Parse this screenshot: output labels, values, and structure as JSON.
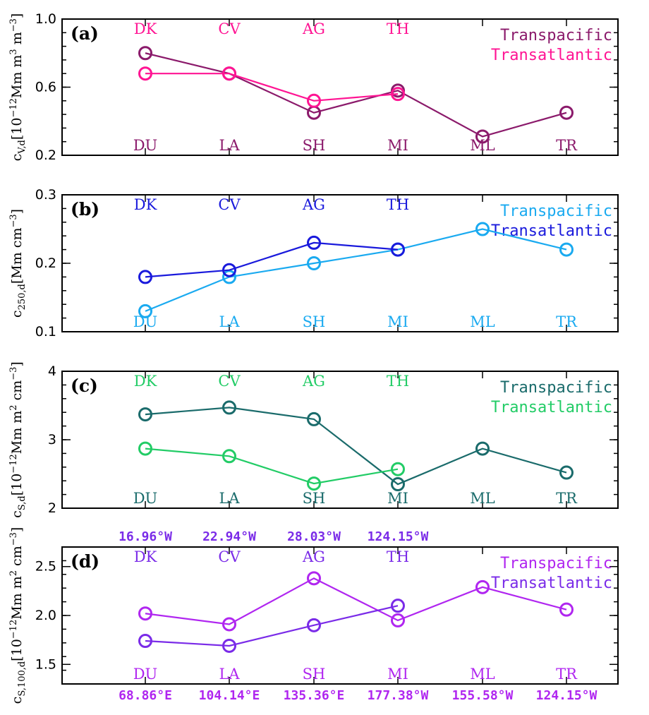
{
  "chart_data": [
    {
      "type": "line",
      "panel": "(a)",
      "ylabel": {
        "main": "c",
        "sub": "V,d",
        "rest": "[10",
        "sup1": "−12",
        "rest2": "Mm m",
        "sup2": "3",
        "rest3": " m",
        "sup3": "−3",
        "close": "]"
      },
      "ylim": [
        0.2,
        1.0
      ],
      "yticks": [
        0.2,
        0.6,
        1.0
      ],
      "ytick_labels": [
        "0.2",
        "0.6",
        "1.0"
      ],
      "top_sites": [
        "DK",
        "CV",
        "AG",
        "TH"
      ],
      "bottom_sites": [
        "DU",
        "LA",
        "SH",
        "MI",
        "ML",
        "TR"
      ],
      "top_color": "#ff1493",
      "bottom_color": "#8b1a6b",
      "series": [
        {
          "name": "Transpacific",
          "color": "#8b1a6b",
          "values": [
            0.8,
            0.68,
            0.45,
            0.58,
            0.31,
            0.45
          ]
        },
        {
          "name": "Transatlantic",
          "color": "#ff1493",
          "values": [
            0.68,
            0.68,
            0.52,
            0.56,
            null,
            null
          ]
        }
      ]
    },
    {
      "type": "line",
      "panel": "(b)",
      "ylabel": {
        "main": "c",
        "sub": "250,d",
        "rest": "[Mm cm",
        "sup1": "−3",
        "rest2": "",
        "sup2": "",
        "rest3": "",
        "sup3": "",
        "close": "]"
      },
      "ylim": [
        0.1,
        0.3
      ],
      "yticks": [
        0.1,
        0.2,
        0.3
      ],
      "ytick_labels": [
        "0.1",
        "0.2",
        "0.3"
      ],
      "top_sites": [
        "DK",
        "CV",
        "AG",
        "TH"
      ],
      "bottom_sites": [
        "DU",
        "LA",
        "SH",
        "MI",
        "ML",
        "TR"
      ],
      "top_color": "#1a1adc",
      "bottom_color": "#1aaaf0",
      "series": [
        {
          "name": "Transpacific",
          "color": "#1aaaf0",
          "values": [
            0.13,
            0.18,
            0.2,
            0.22,
            0.25,
            0.22
          ]
        },
        {
          "name": "Transatlantic",
          "color": "#1a1adc",
          "values": [
            0.18,
            0.19,
            0.23,
            0.22,
            null,
            null
          ]
        }
      ]
    },
    {
      "type": "line",
      "panel": "(c)",
      "ylabel": {
        "main": "c",
        "sub": "S,d",
        "rest": "[10",
        "sup1": "−12",
        "rest2": "Mm m",
        "sup2": "2",
        "rest3": " cm",
        "sup3": "−3",
        "close": "]"
      },
      "ylim": [
        2,
        4
      ],
      "yticks": [
        2,
        3,
        4
      ],
      "ytick_labels": [
        "2",
        "3",
        "4"
      ],
      "top_sites": [
        "DK",
        "CV",
        "AG",
        "TH"
      ],
      "bottom_sites": [
        "DU",
        "LA",
        "SH",
        "MI",
        "ML",
        "TR"
      ],
      "top_color": "#22cc66",
      "bottom_color": "#1a6b6b",
      "series": [
        {
          "name": "Transpacific",
          "color": "#1a6b6b",
          "values": [
            3.37,
            3.47,
            3.3,
            2.35,
            2.87,
            2.52
          ]
        },
        {
          "name": "Transatlantic",
          "color": "#22cc66",
          "values": [
            2.87,
            2.76,
            2.36,
            2.57,
            null,
            null
          ]
        }
      ]
    },
    {
      "type": "line",
      "panel": "(d)",
      "ylabel": {
        "main": "c",
        "sub": "S,100,d",
        "rest": "[10",
        "sup1": "−12",
        "rest2": "Mm m",
        "sup2": "2",
        "rest3": " cm",
        "sup3": "−3",
        "close": "]"
      },
      "ylim": [
        1.3,
        2.7
      ],
      "yticks": [
        1.5,
        2.0,
        2.5
      ],
      "ytick_labels": [
        "1.5",
        "2.0",
        "2.5"
      ],
      "top_sites": [
        "DK",
        "CV",
        "AG",
        "TH"
      ],
      "bottom_sites": [
        "DU",
        "LA",
        "SH",
        "MI",
        "ML",
        "TR"
      ],
      "top_color": "#7a2be8",
      "bottom_color": "#b026f0",
      "top_coords": [
        "16.96°W",
        "22.94°W",
        "28.03°W",
        "124.15°W"
      ],
      "bottom_coords": [
        "68.86°E",
        "104.14°E",
        "135.36°E",
        "177.38°W",
        "155.58°W",
        "124.15°W"
      ],
      "series": [
        {
          "name": "Transpacific",
          "color": "#b026f0",
          "values": [
            2.02,
            1.91,
            2.38,
            1.95,
            2.29,
            2.06
          ]
        },
        {
          "name": "Transatlantic",
          "color": "#7a2be8",
          "values": [
            1.74,
            1.69,
            1.9,
            2.1,
            null,
            null
          ]
        }
      ]
    }
  ]
}
